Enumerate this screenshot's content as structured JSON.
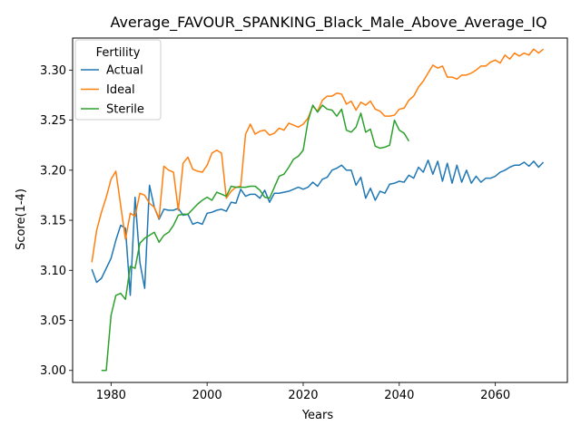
{
  "chart_data": {
    "type": "line",
    "title": "Average_FAVOUR_SPANKING_Black_Male_Above_Average_IQ",
    "xlabel": "Years",
    "ylabel": "Score(1-4)",
    "xlim": [
      1972,
      2075
    ],
    "ylim": [
      2.988,
      3.332
    ],
    "xticks": [
      1980,
      2000,
      2020,
      2040,
      2060
    ],
    "yticks": [
      3.0,
      3.05,
      3.1,
      3.15,
      3.2,
      3.25,
      3.3
    ],
    "ytick_labels": [
      "3.00",
      "3.05",
      "3.10",
      "3.15",
      "3.20",
      "3.25",
      "3.30"
    ],
    "grid": false,
    "legend": {
      "title": "Fertility",
      "position": "top-left"
    },
    "series": [
      {
        "name": "Actual",
        "color": "#1f77b4",
        "x": [
          1976,
          1977,
          1978,
          1980,
          1981,
          1982,
          1983,
          1984,
          1985,
          1986,
          1987,
          1988,
          1989,
          1990,
          1991,
          1992,
          1993,
          1994,
          1995,
          1996,
          1997,
          1998,
          1999,
          2000,
          2001,
          2002,
          2003,
          2004,
          2005,
          2006,
          2007,
          2008,
          2009,
          2010,
          2011,
          2012,
          2013,
          2014,
          2015,
          2016,
          2017,
          2018,
          2019,
          2020,
          2021,
          2022,
          2023,
          2024,
          2025,
          2026,
          2027,
          2028,
          2029,
          2030,
          2031,
          2032,
          2033,
          2034,
          2035,
          2036,
          2037,
          2038,
          2039,
          2040,
          2041,
          2042,
          2043,
          2044,
          2045,
          2046,
          2047,
          2048,
          2049,
          2050,
          2051,
          2052,
          2053,
          2054,
          2055,
          2056,
          2057,
          2058,
          2059,
          2060,
          2061,
          2062,
          2063,
          2064,
          2065,
          2066,
          2067,
          2068,
          2069,
          2070
        ],
        "values": [
          3.101,
          3.088,
          3.092,
          3.112,
          3.13,
          3.145,
          3.142,
          3.075,
          3.173,
          3.108,
          3.082,
          3.185,
          3.163,
          3.151,
          3.161,
          3.16,
          3.16,
          3.162,
          3.155,
          3.156,
          3.146,
          3.148,
          3.146,
          3.157,
          3.158,
          3.16,
          3.161,
          3.159,
          3.168,
          3.167,
          3.181,
          3.174,
          3.176,
          3.176,
          3.172,
          3.18,
          3.168,
          3.177,
          3.177,
          3.178,
          3.179,
          3.181,
          3.183,
          3.181,
          3.183,
          3.188,
          3.184,
          3.191,
          3.193,
          3.2,
          3.202,
          3.205,
          3.2,
          3.2,
          3.185,
          3.193,
          3.172,
          3.182,
          3.17,
          3.179,
          3.177,
          3.186,
          3.187,
          3.189,
          3.188,
          3.195,
          3.192,
          3.203,
          3.198,
          3.21,
          3.196,
          3.209,
          3.189,
          3.207,
          3.187,
          3.205,
          3.188,
          3.2,
          3.187,
          3.194,
          3.188,
          3.192,
          3.192,
          3.194,
          3.198,
          3.2,
          3.203,
          3.205,
          3.205,
          3.208,
          3.204,
          3.209,
          3.203,
          3.208
        ]
      },
      {
        "name": "Ideal",
        "color": "#ff7f0e",
        "x": [
          1976,
          1977,
          1978,
          1979,
          1980,
          1981,
          1982,
          1983,
          1984,
          1985,
          1986,
          1987,
          1988,
          1989,
          1990,
          1991,
          1992,
          1993,
          1994,
          1995,
          1996,
          1997,
          1998,
          1999,
          2000,
          2001,
          2002,
          2003,
          2004,
          2005,
          2006,
          2007,
          2008,
          2009,
          2010,
          2011,
          2012,
          2013,
          2014,
          2015,
          2016,
          2017,
          2018,
          2019,
          2020,
          2021,
          2022,
          2023,
          2024,
          2025,
          2026,
          2027,
          2028,
          2029,
          2030,
          2031,
          2032,
          2033,
          2034,
          2035,
          2036,
          2037,
          2038,
          2039,
          2040,
          2041,
          2042,
          2043,
          2044,
          2045,
          2046,
          2047,
          2048,
          2049,
          2050,
          2051,
          2052,
          2053,
          2054,
          2055,
          2056,
          2057,
          2058,
          2059,
          2060,
          2061,
          2062,
          2063,
          2064,
          2065,
          2066,
          2067,
          2068,
          2069,
          2070
        ],
        "values": [
          3.108,
          3.14,
          3.158,
          3.173,
          3.191,
          3.199,
          3.165,
          3.131,
          3.157,
          3.154,
          3.177,
          3.175,
          3.167,
          3.163,
          3.152,
          3.204,
          3.2,
          3.198,
          3.16,
          3.207,
          3.213,
          3.201,
          3.199,
          3.198,
          3.205,
          3.217,
          3.22,
          3.217,
          3.172,
          3.179,
          3.183,
          3.184,
          3.236,
          3.246,
          3.236,
          3.239,
          3.24,
          3.235,
          3.237,
          3.242,
          3.24,
          3.247,
          3.245,
          3.243,
          3.246,
          3.252,
          3.264,
          3.259,
          3.27,
          3.274,
          3.274,
          3.277,
          3.276,
          3.266,
          3.269,
          3.26,
          3.268,
          3.265,
          3.269,
          3.261,
          3.259,
          3.254,
          3.254,
          3.255,
          3.261,
          3.262,
          3.27,
          3.274,
          3.283,
          3.289,
          3.297,
          3.305,
          3.302,
          3.304,
          3.293,
          3.293,
          3.291,
          3.295,
          3.295,
          3.297,
          3.3,
          3.304,
          3.304,
          3.308,
          3.31,
          3.307,
          3.315,
          3.311,
          3.317,
          3.314,
          3.317,
          3.315,
          3.321,
          3.317,
          3.321
        ]
      },
      {
        "name": "Sterile",
        "color": "#2ca02c",
        "x": [
          1978,
          1979,
          1980,
          1981,
          1982,
          1983,
          1984,
          1985,
          1986,
          1987,
          1988,
          1989,
          1990,
          1991,
          1992,
          1993,
          1994,
          1995,
          1996,
          1997,
          1998,
          1999,
          2000,
          2001,
          2002,
          2003,
          2004,
          2005,
          2006,
          2007,
          2008,
          2009,
          2010,
          2011,
          2012,
          2013,
          2014,
          2015,
          2016,
          2017,
          2018,
          2019,
          2020,
          2021,
          2022,
          2023,
          2024,
          2025,
          2026,
          2027,
          2028,
          2029,
          2030,
          2031,
          2032,
          2033,
          2034,
          2035,
          2036,
          2037,
          2038,
          2039,
          2040,
          2041,
          2042
        ],
        "values": [
          3.0,
          3.0,
          3.055,
          3.075,
          3.077,
          3.071,
          3.104,
          3.102,
          3.127,
          3.132,
          3.135,
          3.138,
          3.128,
          3.135,
          3.138,
          3.145,
          3.155,
          3.156,
          3.156,
          3.161,
          3.166,
          3.17,
          3.173,
          3.17,
          3.178,
          3.176,
          3.174,
          3.184,
          3.183,
          3.183,
          3.183,
          3.184,
          3.184,
          3.18,
          3.173,
          3.172,
          3.183,
          3.194,
          3.196,
          3.203,
          3.211,
          3.214,
          3.22,
          3.249,
          3.265,
          3.258,
          3.265,
          3.261,
          3.26,
          3.254,
          3.261,
          3.24,
          3.238,
          3.243,
          3.257,
          3.238,
          3.241,
          3.224,
          3.222,
          3.223,
          3.225,
          3.25,
          3.24,
          3.237,
          3.229
        ]
      }
    ]
  }
}
